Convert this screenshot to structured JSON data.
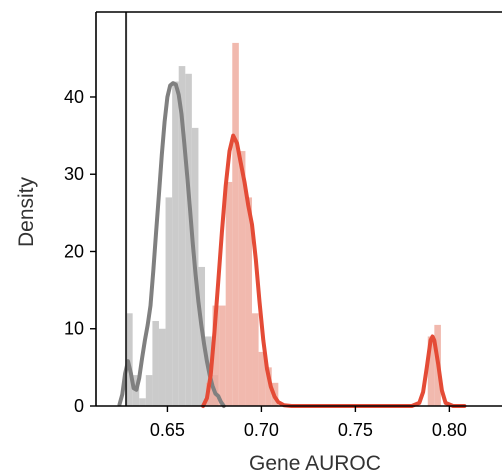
{
  "chart_data": {
    "type": "histogram",
    "xlabel": "Gene AUROC",
    "ylabel": "Density",
    "xlim": [
      0.612,
      0.828
    ],
    "ylim": [
      0,
      51
    ],
    "grid": false,
    "legend": "none",
    "x_ticks": [
      {
        "value": 0.65,
        "label": "0.65"
      },
      {
        "value": 0.7,
        "label": "0.70"
      },
      {
        "value": 0.75,
        "label": "0.75"
      },
      {
        "value": 0.8,
        "label": "0.80"
      }
    ],
    "y_ticks": [
      {
        "value": 0,
        "label": "0"
      },
      {
        "value": 10,
        "label": "10"
      },
      {
        "value": 20,
        "label": "20"
      },
      {
        "value": 30,
        "label": "30"
      },
      {
        "value": 40,
        "label": "40"
      }
    ],
    "reference_line": {
      "x": 0.628,
      "color": "#333333"
    },
    "series": [
      {
        "color_bar": "#c8c8c8",
        "color_line": "#808080",
        "bins": [
          {
            "x0": 0.628,
            "x1": 0.6315,
            "y": 12
          },
          {
            "x0": 0.6315,
            "x1": 0.635,
            "y": 4
          },
          {
            "x0": 0.635,
            "x1": 0.6385,
            "y": 1
          },
          {
            "x0": 0.6385,
            "x1": 0.642,
            "y": 4
          },
          {
            "x0": 0.642,
            "x1": 0.6455,
            "y": 11
          },
          {
            "x0": 0.6455,
            "x1": 0.649,
            "y": 10
          },
          {
            "x0": 0.649,
            "x1": 0.6525,
            "y": 27
          },
          {
            "x0": 0.6525,
            "x1": 0.656,
            "y": 42
          },
          {
            "x0": 0.656,
            "x1": 0.6595,
            "y": 44
          },
          {
            "x0": 0.6595,
            "x1": 0.663,
            "y": 43
          },
          {
            "x0": 0.663,
            "x1": 0.6665,
            "y": 36
          },
          {
            "x0": 0.6665,
            "x1": 0.67,
            "y": 18
          },
          {
            "x0": 0.67,
            "x1": 0.6735,
            "y": 9
          },
          {
            "x0": 0.6735,
            "x1": 0.677,
            "y": 4
          }
        ],
        "kde": {
          "x": [
            0.6245,
            0.626,
            0.6275,
            0.629,
            0.6305,
            0.632,
            0.6335,
            0.635,
            0.6365,
            0.638,
            0.6395,
            0.641,
            0.6425,
            0.644,
            0.6455,
            0.647,
            0.6485,
            0.65,
            0.6515,
            0.653,
            0.6545,
            0.656,
            0.6575,
            0.659,
            0.6605,
            0.662,
            0.6635,
            0.665,
            0.6665,
            0.668,
            0.6695,
            0.671,
            0.6725,
            0.674,
            0.6755,
            0.677,
            0.6785,
            0.68
          ],
          "y": [
            0.2,
            1.5,
            4.2,
            5.8,
            4.3,
            2.3,
            2.1,
            3.6,
            6.2,
            8.5,
            10.5,
            13.0,
            17.5,
            22.5,
            27.5,
            32.5,
            36.8,
            40.0,
            41.5,
            41.8,
            41.6,
            40.3,
            37.8,
            34.0,
            29.8,
            25.5,
            21.0,
            17.0,
            13.5,
            10.5,
            8.0,
            5.8,
            4.0,
            2.6,
            1.6,
            1.3,
            0.5,
            0
          ]
        }
      },
      {
        "color_bar": "#eeaa9c",
        "color_line": "#e44b36",
        "bins": [
          {
            "x0": 0.6705,
            "x1": 0.674,
            "y": 3
          },
          {
            "x0": 0.674,
            "x1": 0.6775,
            "y": 13
          },
          {
            "x0": 0.6775,
            "x1": 0.681,
            "y": 13
          },
          {
            "x0": 0.681,
            "x1": 0.6845,
            "y": 29
          },
          {
            "x0": 0.6845,
            "x1": 0.688,
            "y": 47
          },
          {
            "x0": 0.688,
            "x1": 0.6915,
            "y": 33
          },
          {
            "x0": 0.6915,
            "x1": 0.695,
            "y": 27
          },
          {
            "x0": 0.695,
            "x1": 0.6985,
            "y": 12
          },
          {
            "x0": 0.6985,
            "x1": 0.702,
            "y": 7
          },
          {
            "x0": 0.702,
            "x1": 0.7055,
            "y": 5
          },
          {
            "x0": 0.7055,
            "x1": 0.709,
            "y": 3
          },
          {
            "x0": 0.7885,
            "x1": 0.792,
            "y": 9
          },
          {
            "x0": 0.792,
            "x1": 0.7955,
            "y": 10.5
          }
        ],
        "kde": {
          "x": [
            0.669,
            0.671,
            0.673,
            0.675,
            0.677,
            0.679,
            0.681,
            0.683,
            0.685,
            0.687,
            0.689,
            0.691,
            0.693,
            0.695,
            0.697,
            0.699,
            0.701,
            0.703,
            0.705,
            0.707,
            0.709,
            0.712,
            0.716,
            0.72,
            0.73,
            0.74,
            0.75,
            0.76,
            0.77,
            0.78,
            0.784,
            0.786,
            0.788,
            0.79,
            0.791,
            0.792,
            0.794,
            0.796,
            0.798,
            0.802,
            0.808
          ],
          "y": [
            0,
            1.0,
            4.0,
            9.5,
            16.0,
            22.5,
            28.5,
            33.0,
            35.0,
            34.0,
            31.5,
            29.0,
            26.0,
            23.5,
            19.0,
            13.5,
            8.5,
            4.8,
            2.5,
            1.2,
            0.5,
            0.1,
            0,
            0,
            0,
            0,
            0,
            0,
            0,
            0,
            0.4,
            1.8,
            5.0,
            8.5,
            9.0,
            8.5,
            5.5,
            2.0,
            0.4,
            0,
            0
          ]
        }
      }
    ]
  }
}
